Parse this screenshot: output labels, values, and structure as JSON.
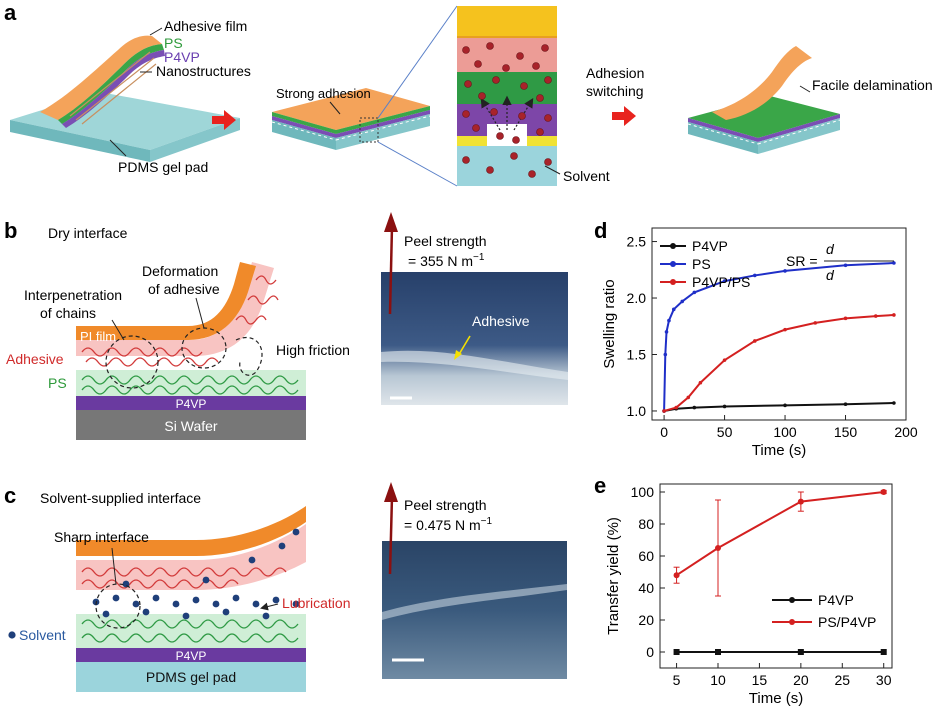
{
  "panels": {
    "a": "a",
    "b": "b",
    "c": "c",
    "d": "d",
    "e": "e"
  },
  "panel_a": {
    "labels": [
      "Adhesive film",
      "PS",
      "P4VP",
      "Nanostructures"
    ],
    "pdms": "PDMS gel pad",
    "strong": "Strong adhesion",
    "switching": [
      "Adhesion",
      "switching"
    ],
    "solvent": "Solvent",
    "facile": "Facile delamination"
  },
  "panel_b": {
    "title": "Dry interface",
    "interpenetration": [
      "Interpenetration",
      "of chains"
    ],
    "deformation": [
      "Deformation",
      "of adhesive"
    ],
    "friction": "High friction",
    "pi": "PI film",
    "adhesive": "Adhesive",
    "ps": "PS",
    "p4vp": "P4VP",
    "si": "Si Wafer",
    "peel": [
      "Peel strength",
      "= 355 N m"
    ],
    "photo_label": "Adhesive"
  },
  "panel_c": {
    "title": "Solvent-supplied interface",
    "sharp": "Sharp interface",
    "lubrication": "Lubrication",
    "solvent": "Solvent",
    "p4vp": "P4VP",
    "pdms": "PDMS gel pad",
    "peel": [
      "Peel strength",
      "= 0.475 N m"
    ]
  },
  "panel_d": {
    "formula": "SR =",
    "d": "d",
    "colors": {
      "P4VP": "#111111",
      "PS": "#1f2fc8",
      "P4VP/PS": "#d42020"
    }
  },
  "panel_e": {
    "colors": {
      "P4VP": "#111111",
      "PS/P4VP": "#d42020"
    }
  },
  "chart_data": [
    {
      "type": "line",
      "xlabel": "Time (s)",
      "ylabel": "Swelling ratio",
      "xlim": [
        -10,
        200
      ],
      "ylim": [
        0.92,
        2.62
      ],
      "xticks": [
        0,
        50,
        100,
        150,
        200
      ],
      "yticks": [
        1.0,
        1.5,
        2.0,
        2.5
      ],
      "legend": "top-left",
      "series": [
        {
          "name": "P4VP",
          "x": [
            0,
            10,
            25,
            50,
            100,
            150,
            190
          ],
          "y": [
            1.0,
            1.02,
            1.03,
            1.04,
            1.05,
            1.06,
            1.07
          ]
        },
        {
          "name": "PS",
          "x": [
            0,
            1,
            2,
            4,
            8,
            15,
            25,
            50,
            75,
            100,
            150,
            190
          ],
          "y": [
            1.0,
            1.5,
            1.7,
            1.8,
            1.9,
            1.97,
            2.05,
            2.15,
            2.2,
            2.24,
            2.29,
            2.31
          ]
        },
        {
          "name": "P4VP/PS",
          "x": [
            0,
            10,
            20,
            30,
            50,
            75,
            100,
            125,
            150,
            175,
            190
          ],
          "y": [
            1.0,
            1.03,
            1.12,
            1.25,
            1.45,
            1.62,
            1.72,
            1.78,
            1.82,
            1.84,
            1.85
          ]
        }
      ]
    },
    {
      "type": "line",
      "xlabel": "Time (s)",
      "ylabel": "Transfer yield (%)",
      "xlim": [
        3,
        31
      ],
      "ylim": [
        -10,
        105
      ],
      "xticks": [
        5,
        10,
        15,
        20,
        25,
        30
      ],
      "yticks": [
        0,
        20,
        40,
        60,
        80,
        100
      ],
      "legend": "bottom-right",
      "series": [
        {
          "name": "P4VP",
          "x": [
            5,
            10,
            20,
            30
          ],
          "y": [
            0,
            0,
            0,
            0
          ]
        },
        {
          "name": "PS/P4VP",
          "x": [
            5,
            10,
            20,
            30
          ],
          "y": [
            48,
            65,
            94,
            100
          ],
          "error": [
            5,
            30,
            6,
            1
          ]
        }
      ]
    }
  ]
}
